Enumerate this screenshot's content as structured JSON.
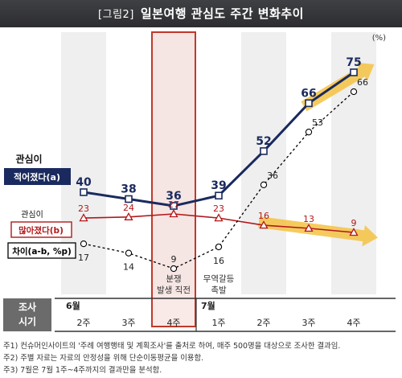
{
  "header": {
    "tag": "[그림2]",
    "title": "일본여행 관심도 주간 변화추이"
  },
  "chart_data": {
    "type": "line",
    "unit": "(%)",
    "ylim": [
      0,
      80
    ],
    "x": [
      "2주",
      "3주",
      "4주",
      "1주",
      "2주",
      "3주",
      "4주"
    ],
    "months": [
      {
        "label": "6월",
        "index": 0
      },
      {
        "label": "7월",
        "index": 3
      }
    ],
    "row_header": [
      "조사",
      "시기"
    ],
    "highlight_index": 2,
    "series": [
      {
        "label": [
          "관심이",
          "적어졌다(a)"
        ],
        "color": "#1a2a5e",
        "values": [
          40,
          38,
          36,
          39,
          52,
          66,
          75
        ]
      },
      {
        "label": [
          "관심이",
          "많아졌다(b)"
        ],
        "color": "#b2181b",
        "values": [
          23,
          24,
          27,
          23,
          16,
          13,
          9
        ]
      },
      {
        "label": [
          "차이(a-b, %p)"
        ],
        "color": "#000000",
        "dashed": true,
        "values": [
          17,
          14,
          9,
          16,
          36,
          53,
          66
        ]
      }
    ],
    "annotations": [
      {
        "index": 2,
        "lines": [
          "분쟁",
          "발생 직전"
        ]
      },
      {
        "index": 3,
        "lines": [
          "무역갈등",
          "촉발"
        ]
      }
    ],
    "colors": {
      "trend_arrow": "#f5c242",
      "highlight_border": "#c0392b",
      "highlight_fill": "#f7e1df",
      "stripe": "#efefef",
      "row_header_bg": "#6b6b6b"
    }
  },
  "notes": [
    "주1) 컨슈머인사이트의 '주례 여행행태 및 계획조사'를 출처로 하여, 매주 500명을 대상으로 조사한 결과임.",
    "주2) 주별 자료는 자료의 안정성을 위해 단순이동평균을 이용함.",
    "주3) 7월은 7월 1주~4주까지의 결과만을 분석함."
  ]
}
